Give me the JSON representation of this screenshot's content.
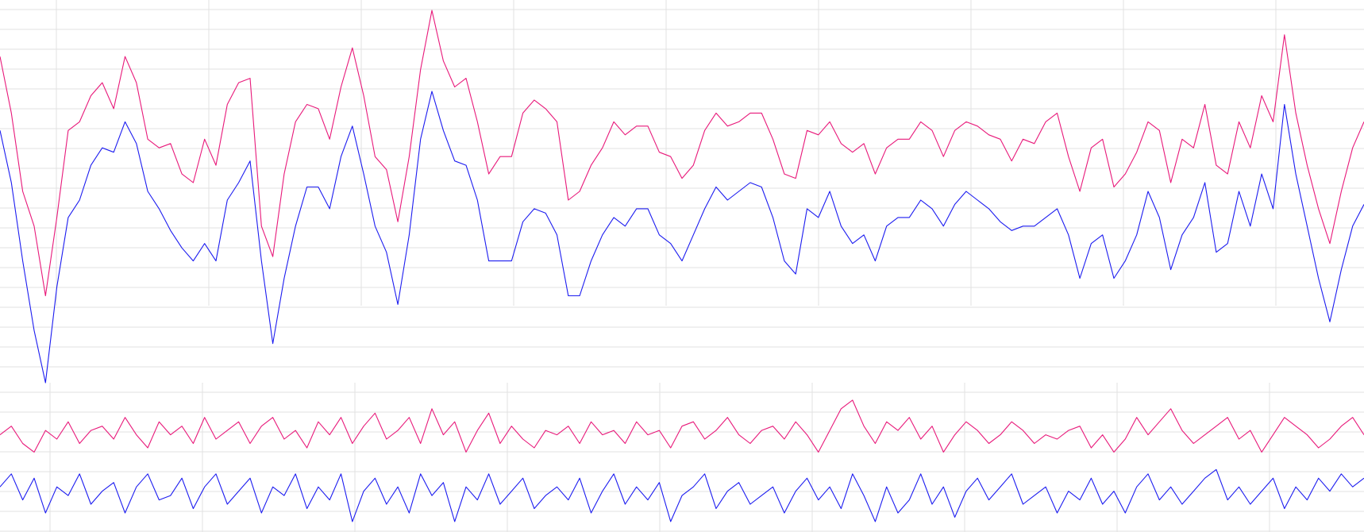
{
  "chart_data": [
    {
      "type": "line",
      "ylim": [
        440,
        0
      ],
      "series": [
        {
          "color": "#e8197a",
          "values": [
            65,
            130,
            220,
            260,
            340,
            250,
            150,
            140,
            110,
            95,
            125,
            65,
            95,
            160,
            170,
            165,
            200,
            210,
            160,
            190,
            120,
            95,
            90,
            260,
            295,
            200,
            140,
            120,
            125,
            160,
            100,
            55,
            110,
            180,
            195,
            255,
            180,
            80,
            12,
            70,
            100,
            90,
            140,
            200,
            180,
            180,
            130,
            115,
            125,
            140,
            230,
            220,
            190,
            170,
            140,
            155,
            145,
            145,
            175,
            180,
            205,
            190,
            150,
            130,
            145,
            140,
            130,
            130,
            160,
            200,
            205,
            150,
            155,
            140,
            165,
            175,
            165,
            200,
            170,
            160,
            160,
            140,
            150,
            180,
            150,
            140,
            145,
            155,
            160,
            185,
            160,
            165,
            140,
            130,
            180,
            220,
            170,
            160,
            215,
            200,
            175,
            140,
            150,
            210,
            160,
            170,
            120,
            190,
            200,
            140,
            170,
            110,
            140,
            40,
            130,
            190,
            240,
            280,
            220,
            170,
            140
          ]
        },
        {
          "color": "#1c1cf0",
          "values": [
            150,
            210,
            300,
            380,
            440,
            330,
            250,
            230,
            190,
            170,
            175,
            140,
            165,
            220,
            240,
            265,
            285,
            300,
            280,
            300,
            230,
            210,
            185,
            300,
            395,
            320,
            260,
            215,
            215,
            240,
            180,
            145,
            200,
            260,
            290,
            350,
            270,
            160,
            105,
            150,
            185,
            190,
            230,
            300,
            300,
            300,
            255,
            240,
            245,
            270,
            340,
            340,
            300,
            270,
            250,
            260,
            240,
            240,
            270,
            280,
            300,
            270,
            240,
            215,
            230,
            220,
            210,
            215,
            250,
            300,
            315,
            240,
            250,
            220,
            260,
            280,
            270,
            300,
            260,
            250,
            250,
            230,
            240,
            260,
            235,
            220,
            230,
            240,
            255,
            265,
            260,
            260,
            250,
            240,
            270,
            320,
            280,
            270,
            320,
            300,
            270,
            220,
            250,
            310,
            270,
            250,
            210,
            290,
            280,
            220,
            260,
            200,
            240,
            120,
            200,
            260,
            320,
            370,
            310,
            260,
            235
          ]
        }
      ]
    },
    {
      "type": "line",
      "ylim": [
        612,
        440
      ],
      "series": [
        {
          "color": "#e8197a",
          "values": [
            500,
            490,
            510,
            520,
            495,
            505,
            485,
            510,
            495,
            490,
            505,
            480,
            500,
            515,
            485,
            500,
            490,
            510,
            480,
            505,
            495,
            485,
            510,
            490,
            480,
            505,
            495,
            515,
            485,
            500,
            480,
            510,
            490,
            475,
            505,
            495,
            480,
            510,
            470,
            500,
            485,
            520,
            495,
            475,
            510,
            490,
            505,
            515,
            495,
            500,
            490,
            510,
            485,
            500,
            495,
            510,
            485,
            500,
            495,
            515,
            490,
            485,
            505,
            495,
            480,
            500,
            510,
            495,
            490,
            505,
            485,
            500,
            520,
            495,
            470,
            460,
            490,
            510,
            485,
            495,
            480,
            505,
            490,
            520,
            500,
            485,
            495,
            510,
            500,
            485,
            495,
            510,
            500,
            505,
            495,
            490,
            515,
            500,
            520,
            505,
            480,
            500,
            485,
            470,
            495,
            510,
            500,
            490,
            480,
            505,
            495,
            520,
            500,
            480,
            490,
            500,
            515,
            505,
            490,
            480,
            500
          ]
        },
        {
          "color": "#1c1cf0",
          "values": [
            560,
            545,
            575,
            550,
            590,
            560,
            570,
            545,
            580,
            565,
            555,
            590,
            560,
            545,
            575,
            570,
            550,
            585,
            560,
            545,
            580,
            565,
            550,
            590,
            560,
            570,
            545,
            585,
            560,
            575,
            545,
            600,
            565,
            550,
            580,
            560,
            590,
            545,
            570,
            555,
            600,
            560,
            575,
            545,
            580,
            565,
            550,
            585,
            570,
            560,
            575,
            550,
            590,
            565,
            545,
            580,
            560,
            575,
            555,
            600,
            570,
            560,
            545,
            585,
            565,
            555,
            580,
            570,
            560,
            590,
            565,
            550,
            575,
            560,
            585,
            545,
            570,
            600,
            560,
            590,
            575,
            545,
            580,
            560,
            595,
            565,
            550,
            575,
            560,
            545,
            580,
            570,
            560,
            590,
            565,
            575,
            550,
            580,
            565,
            590,
            560,
            545,
            575,
            560,
            580,
            565,
            550,
            540,
            575,
            560,
            580,
            565,
            550,
            585,
            560,
            575,
            550,
            565,
            545,
            560,
            550
          ]
        }
      ]
    }
  ]
}
